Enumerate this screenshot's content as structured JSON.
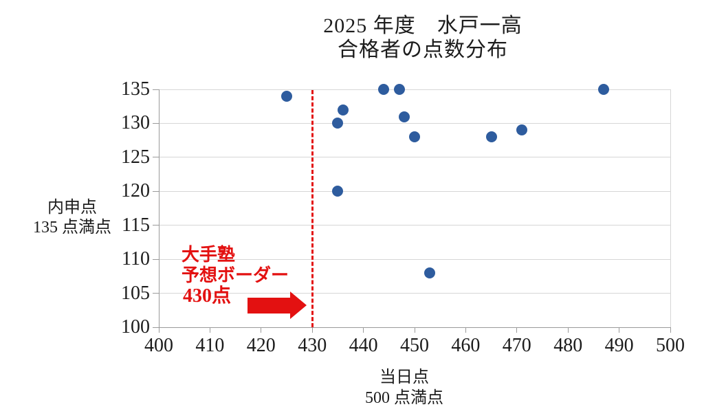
{
  "title": {
    "line1": "2025 年度　水戸一高",
    "line2": "合格者の点数分布"
  },
  "chart_data": {
    "type": "scatter",
    "title": "2025年度 水戸一高 合格者の点数分布",
    "xlabel": "当日点 500点満点",
    "ylabel": "内申点 135点満点",
    "xlabel_line1": "当日点",
    "xlabel_line2": "500 点満点",
    "ylabel_line1": "内申点",
    "ylabel_line2": "135 点満点",
    "xlim": [
      400,
      500
    ],
    "ylim": [
      100,
      135
    ],
    "x_ticks": [
      400,
      410,
      420,
      430,
      440,
      450,
      460,
      470,
      480,
      490,
      500
    ],
    "y_ticks": [
      100,
      105,
      110,
      115,
      120,
      125,
      130,
      135
    ],
    "grid": "horizontal",
    "legend": "none",
    "points": [
      {
        "x": 425,
        "y": 134
      },
      {
        "x": 435,
        "y": 120
      },
      {
        "x": 435,
        "y": 130
      },
      {
        "x": 436,
        "y": 132
      },
      {
        "x": 444,
        "y": 135
      },
      {
        "x": 447,
        "y": 135
      },
      {
        "x": 448,
        "y": 131
      },
      {
        "x": 450,
        "y": 128
      },
      {
        "x": 453,
        "y": 108
      },
      {
        "x": 465,
        "y": 128
      },
      {
        "x": 471,
        "y": 129
      },
      {
        "x": 487,
        "y": 135
      }
    ],
    "annotation": {
      "line1": "大手塾",
      "line2": "予想ボーダー",
      "line3": "430点",
      "border_x": 430
    }
  },
  "colors": {
    "marker": "#2e5c9e",
    "accent_red": "#e31111",
    "gridline": "#d6d6d6",
    "axis": "#9a9a9a",
    "text": "#1c1c1c"
  }
}
